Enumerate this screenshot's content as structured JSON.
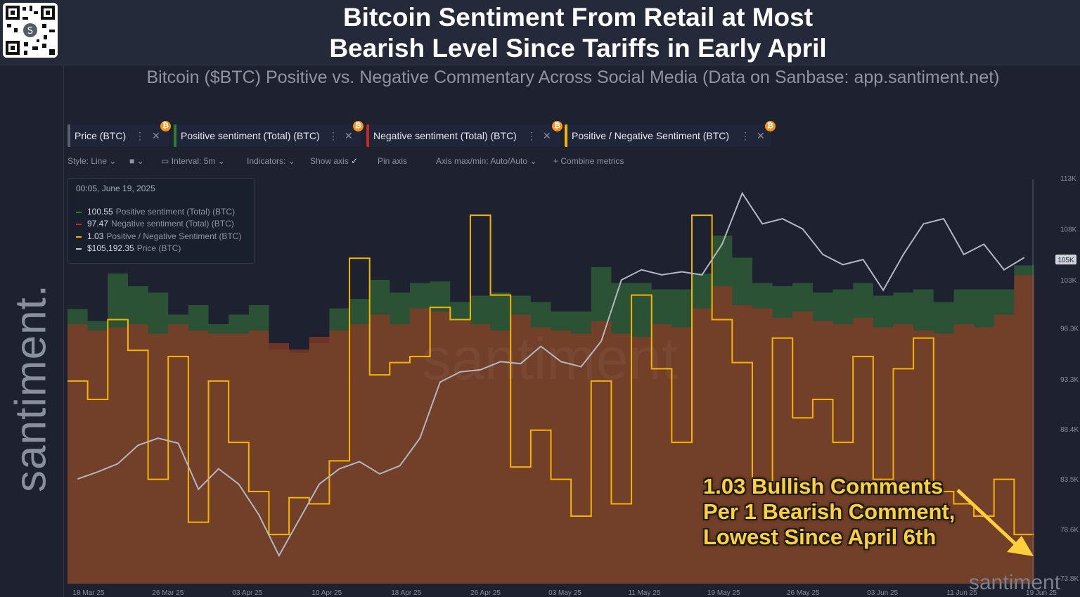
{
  "header": {
    "title_line1": "Bitcoin Sentiment From Retail at Most",
    "title_line2": "Bearish Level Since Tariffs in Early April",
    "subtitle": "Bitcoin ($BTC) Positive vs. Negative Commentary Across Social Media (Data on Sanbase: app.santiment.net)",
    "qr_icon": "qr-code-icon"
  },
  "brand": {
    "sidebar_text": "santiment.",
    "watermark": "santiment",
    "center_watermark": "santiment"
  },
  "metrics": [
    {
      "label": "Price (BTC)",
      "color": "#9aa0ab"
    },
    {
      "label": "Positive sentiment (Total) (BTC)",
      "color": "#2e7d32"
    },
    {
      "label": "Negative sentiment (Total) (BTC)",
      "color": "#c62828"
    },
    {
      "label": "Positive / Negative Sentiment (BTC)",
      "color": "#f5b400"
    }
  ],
  "toolbar": {
    "style": "Style: Line",
    "interval": "Interval: 5m",
    "indicators": "Indicators:",
    "show_axis": "Show axis",
    "pin_axis": "Pin axis",
    "axis_minmax": "Axis max/min: Auto/Auto",
    "combine": "Combine metrics"
  },
  "tooltip": {
    "time": "00:05, June 19, 2025",
    "rows": [
      {
        "value": "100.55",
        "label": "Positive sentiment (Total) (BTC)",
        "color": "#2e7d32"
      },
      {
        "value": "97.47",
        "label": "Negative sentiment (Total) (BTC)",
        "color": "#c62828"
      },
      {
        "value": "1.03",
        "label": "Positive / Negative Sentiment (BTC)",
        "color": "#f5b400"
      },
      {
        "value": "$105,192.35",
        "label": "Price (BTC)",
        "color": "#9aa0ab"
      }
    ]
  },
  "annotation": {
    "line1": "1.03 Bullish Comments",
    "line2": "Per 1 Bearish Comment,",
    "line3": "Lowest Since April 6th"
  },
  "chart_data": {
    "type": "line",
    "title": "Bitcoin Sentiment From Retail at Most Bearish Level Since Tariffs in Early April",
    "x_ticks": [
      "18 Mar 25",
      "26 Mar 25",
      "03 Apr 25",
      "10 Apr 25",
      "18 Apr 25",
      "26 Apr 25",
      "03 May 25",
      "11 May 25",
      "19 May 25",
      "26 May 25",
      "03 Jun 25",
      "11 Jun 25",
      "19 Jun 25"
    ],
    "y_price_ticks": [
      "113K",
      "108K",
      "105K",
      "103K",
      "98.3K",
      "93.3K",
      "88.4K",
      "83.5K",
      "78.6K",
      "73.8K"
    ],
    "price_ylim": [
      73800,
      113000
    ],
    "current_price_label": "105K",
    "series": [
      {
        "name": "Price (BTC)",
        "color": "#a7acb6",
        "x": [
          "18 Mar",
          "20 Mar",
          "22 Mar",
          "24 Mar",
          "26 Mar",
          "28 Mar",
          "30 Mar",
          "01 Apr",
          "03 Apr",
          "05 Apr",
          "07 Apr",
          "09 Apr",
          "10 Apr",
          "12 Apr",
          "14 Apr",
          "16 Apr",
          "18 Apr",
          "20 Apr",
          "22 Apr",
          "24 Apr",
          "26 Apr",
          "28 Apr",
          "30 Apr",
          "02 May",
          "04 May",
          "06 May",
          "08 May",
          "10 May",
          "12 May",
          "14 May",
          "16 May",
          "18 May",
          "20 May",
          "22 May",
          "24 May",
          "26 May",
          "28 May",
          "30 May",
          "01 Jun",
          "03 Jun",
          "05 Jun",
          "07 Jun",
          "09 Jun",
          "11 Jun",
          "13 Jun",
          "15 Jun",
          "17 Jun",
          "19 Jun"
        ],
        "values": [
          83500,
          84200,
          85000,
          86800,
          87500,
          87000,
          82500,
          84500,
          83000,
          80000,
          76000,
          79500,
          83000,
          84500,
          85200,
          84000,
          84800,
          87500,
          93000,
          94000,
          94200,
          95000,
          94800,
          96500,
          95000,
          94500,
          97000,
          103000,
          104000,
          103500,
          103800,
          103500,
          106500,
          111500,
          108500,
          109000,
          108000,
          105500,
          104500,
          105000,
          102000,
          105500,
          108500,
          109000,
          105500,
          106500,
          104000,
          105200
        ]
      },
      {
        "name": "Positive sentiment (Total) (BTC)",
        "color": "#2e7d32",
        "values": [
          86.8,
          83.0,
          98.0,
          94.0,
          92.0,
          85.0,
          88.0,
          82.0,
          85.0,
          88.0,
          74.0,
          73.0,
          76.0,
          87.0,
          90.0,
          96.0,
          92.0,
          95.0,
          95.5,
          89.0,
          91.0,
          92.0,
          91.0,
          89.0,
          86.0,
          86.0,
          100.0,
          95.0,
          95.0,
          93.0,
          93.0,
          98.0,
          110.0,
          103.0,
          95.0,
          94.0,
          95.0,
          92.0,
          93.0,
          95.0,
          91.0,
          92.0,
          93.0,
          89.0,
          93.0,
          93.0,
          93.0,
          100.55
        ]
      },
      {
        "name": "Negative sentiment (Total) (BTC)",
        "color": "#c62828",
        "values": [
          82.0,
          80.0,
          81.0,
          82.0,
          79.0,
          82.0,
          80.0,
          79.0,
          79.0,
          80.0,
          76.0,
          74.0,
          78.0,
          80.0,
          82.0,
          85.0,
          82.0,
          87.0,
          86.0,
          83.0,
          82.0,
          80.0,
          85.0,
          81.0,
          80.0,
          79.0,
          83.0,
          79.0,
          78.0,
          82.0,
          81.0,
          87.0,
          94.0,
          88.0,
          87.0,
          84.0,
          86.0,
          83.0,
          82.0,
          84.0,
          81.0,
          82.0,
          80.0,
          79.0,
          82.0,
          81.0,
          85.0,
          97.47
        ]
      },
      {
        "name": "Positive / Negative Sentiment (BTC)",
        "color": "#f5b400",
        "values": [
          1.28,
          1.25,
          1.38,
          1.33,
          1.12,
          1.32,
          1.05,
          1.28,
          1.18,
          1.1,
          1.03,
          1.09,
          1.08,
          1.15,
          1.48,
          1.29,
          1.31,
          1.32,
          1.4,
          1.38,
          1.55,
          1.42,
          1.14,
          1.2,
          1.12,
          1.06,
          1.28,
          1.08,
          1.42,
          1.3,
          1.18,
          1.55,
          1.38,
          1.31,
          1.1,
          1.35,
          1.22,
          1.25,
          1.18,
          1.32,
          1.12,
          1.3,
          1.35,
          1.1,
          1.08,
          1.06,
          1.12,
          1.03
        ]
      }
    ]
  }
}
